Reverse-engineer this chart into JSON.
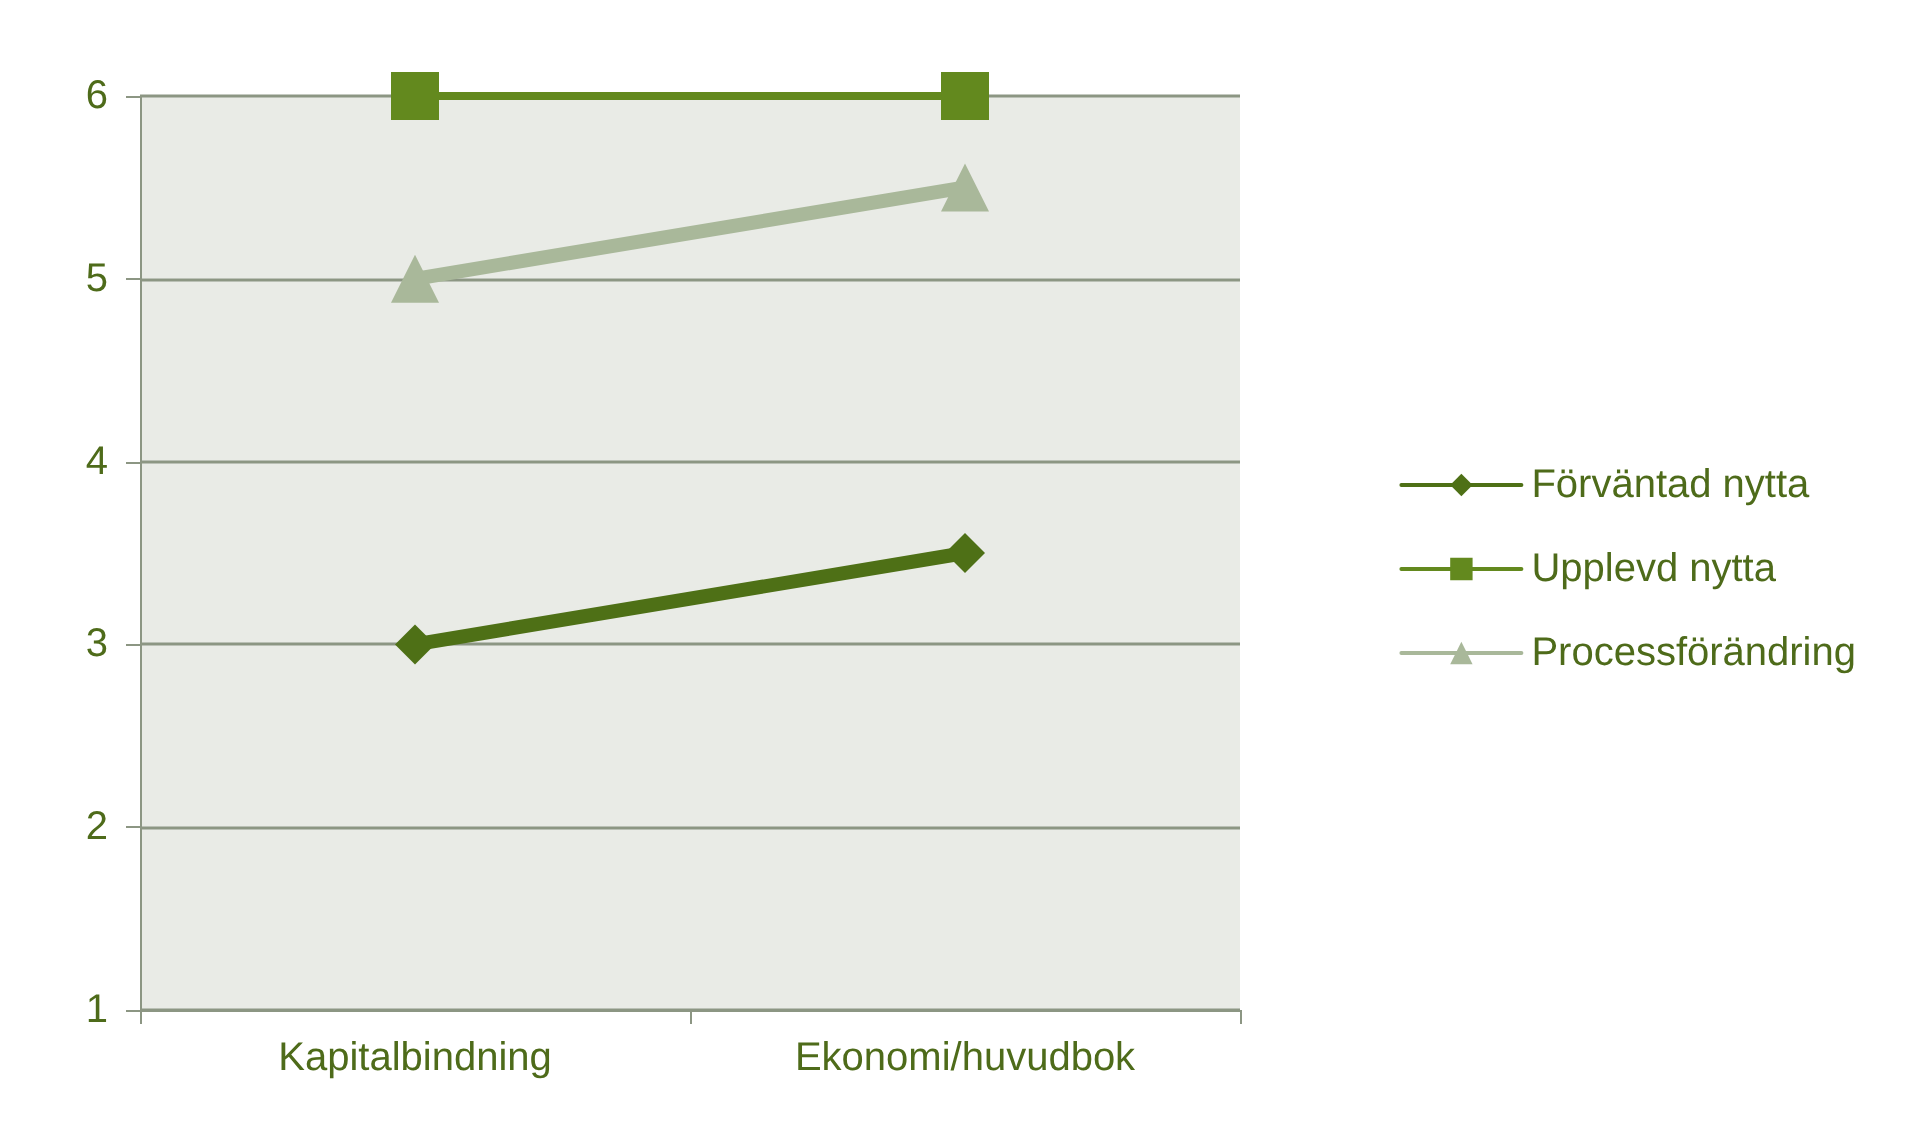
{
  "chart_data": {
    "type": "line",
    "categories": [
      "Kapitalbindning",
      "Ekonomi/huvudbok"
    ],
    "series": [
      {
        "name": "Förväntad nytta",
        "color": "#4e7016",
        "marker": "diamond",
        "values": [
          3,
          3.5
        ]
      },
      {
        "name": "Upplevd nytta",
        "color": "#63891e",
        "marker": "square",
        "values": [
          6,
          6
        ]
      },
      {
        "name": "Processförändring",
        "color": "#a9b89a",
        "marker": "triangle",
        "values": [
          5,
          5.5
        ]
      }
    ],
    "ylim": [
      1,
      6
    ],
    "yticks": [
      1,
      2,
      3,
      4,
      5,
      6
    ],
    "grid": "y",
    "legend": "right"
  }
}
